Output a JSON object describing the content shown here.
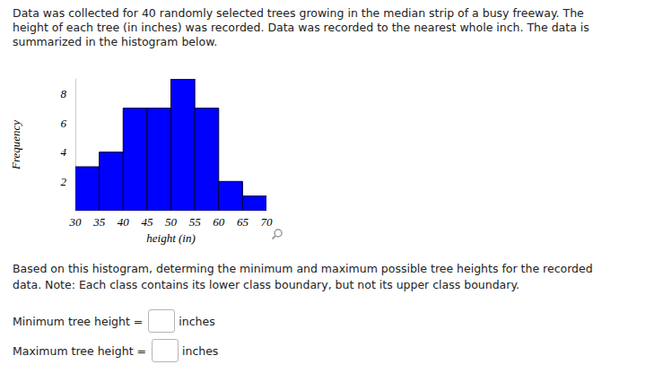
{
  "question": {
    "paragraph_lines": [
      "Data was collected for 40 randomly selected trees growing in the median strip of a busy freeway. The",
      "height of each tree (in inches) was recorded. Data was recorded to the nearest whole inch. The data is",
      "summarized in the histogram below."
    ],
    "instruction_lines": [
      "Based on this histogram, determing the minimum and maximum possible tree heights for the recorded",
      "data. Note: Each class contains its lower class boundary, but not its upper class boundary."
    ],
    "answers": [
      {
        "label": "Minimum tree height =",
        "unit": "inches"
      },
      {
        "label": "Maximum tree height =",
        "unit": "inches"
      }
    ]
  },
  "chart_data": {
    "type": "histogram",
    "bins": [
      30,
      35,
      40,
      45,
      50,
      55,
      60,
      65,
      70
    ],
    "counts": [
      3,
      4,
      7,
      7,
      9,
      7,
      2,
      1
    ],
    "color": "#0000ff",
    "xlabel": "height (in)",
    "ylabel": "Frequency",
    "xlim": [
      30,
      70
    ],
    "xticks": [
      30,
      35,
      40,
      45,
      50,
      55,
      60,
      65,
      70
    ],
    "ylim": [
      0,
      9
    ],
    "yticks": [
      2,
      4,
      6,
      8
    ],
    "grid": false
  }
}
